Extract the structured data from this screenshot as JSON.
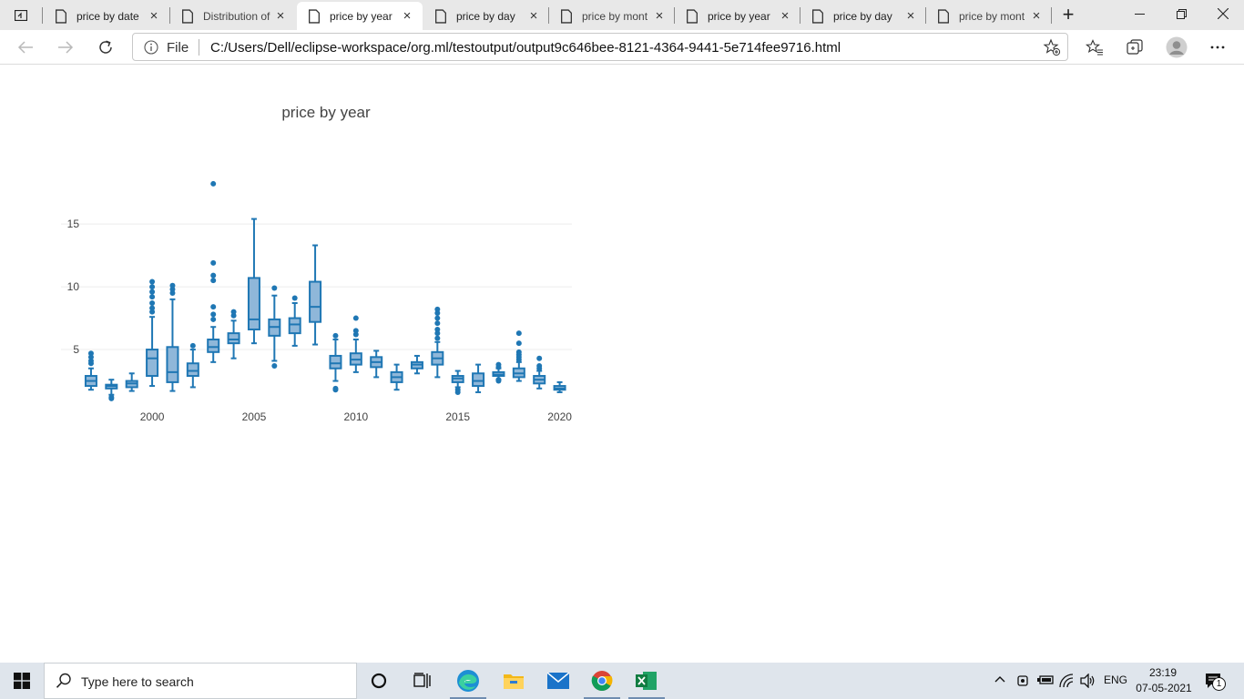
{
  "browser": {
    "tabs": [
      {
        "title": "price by date",
        "active": false
      },
      {
        "title": "Distribution of",
        "active": false
      },
      {
        "title": "price by year",
        "active": true
      },
      {
        "title": "price by day",
        "active": false
      },
      {
        "title": "price by mont",
        "active": false
      },
      {
        "title": "price by year",
        "active": false
      },
      {
        "title": "price by day",
        "active": false
      },
      {
        "title": "price by mont",
        "active": false
      }
    ],
    "close_glyph": "×",
    "new_tab_glyph": "+",
    "address": {
      "scheme_label": "File",
      "url": "C:/Users/Dell/eclipse-workspace/org.ml/testoutput/output9c646bee-8121-4364-9441-5e714fee9716.html"
    }
  },
  "chart_data": {
    "type": "box",
    "title": "price by year",
    "xlabel": "",
    "ylabel": "",
    "x_tick_labels": [
      "2000",
      "2005",
      "2010",
      "2015",
      "2020"
    ],
    "x_ticks": [
      2000,
      2005,
      2010,
      2015,
      2020
    ],
    "y_tick_labels": [
      "5",
      "10",
      "15"
    ],
    "y_ticks": [
      5,
      10,
      15
    ],
    "xlim": [
      1996.6,
      2020.6
    ],
    "ylim": [
      0.8,
      19.5
    ],
    "grid": "horizontal",
    "color": "#1f77b4",
    "fill": "#8fb7d9",
    "boxes": [
      {
        "year": 1997,
        "lf": 1.8,
        "q1": 2.1,
        "med": 2.5,
        "q3": 2.9,
        "uf": 3.5,
        "outliers": [
          3.9,
          4.1,
          4.4,
          4.7
        ]
      },
      {
        "year": 1998,
        "lf": 1.4,
        "q1": 1.9,
        "med": 2.1,
        "q3": 2.2,
        "uf": 2.6,
        "outliers": [
          1.1,
          1.2
        ]
      },
      {
        "year": 1999,
        "lf": 1.7,
        "q1": 2.0,
        "med": 2.3,
        "q3": 2.5,
        "uf": 3.1,
        "outliers": []
      },
      {
        "year": 2000,
        "lf": 2.1,
        "q1": 2.9,
        "med": 4.3,
        "q3": 5.0,
        "uf": 7.6,
        "outliers": [
          8.0,
          8.3,
          8.7,
          9.2,
          9.6,
          10.0,
          10.4
        ]
      },
      {
        "year": 2001,
        "lf": 1.7,
        "q1": 2.4,
        "med": 3.2,
        "q3": 5.2,
        "uf": 9.0,
        "outliers": [
          9.5,
          9.8,
          10.1
        ]
      },
      {
        "year": 2002,
        "lf": 2.0,
        "q1": 2.9,
        "med": 3.3,
        "q3": 3.9,
        "uf": 5.0,
        "outliers": [
          5.3
        ]
      },
      {
        "year": 2003,
        "lf": 4.0,
        "q1": 4.8,
        "med": 5.2,
        "q3": 5.8,
        "uf": 6.8,
        "outliers": [
          7.4,
          7.8,
          8.4,
          10.5,
          10.9,
          11.9,
          18.2
        ]
      },
      {
        "year": 2004,
        "lf": 4.3,
        "q1": 5.5,
        "med": 5.8,
        "q3": 6.3,
        "uf": 7.3,
        "outliers": [
          7.7,
          8.0
        ]
      },
      {
        "year": 2005,
        "lf": 5.5,
        "q1": 6.6,
        "med": 7.4,
        "q3": 10.7,
        "uf": 15.4,
        "outliers": []
      },
      {
        "year": 2006,
        "lf": 4.1,
        "q1": 6.1,
        "med": 6.8,
        "q3": 7.4,
        "uf": 9.3,
        "outliers": [
          3.7,
          9.9
        ]
      },
      {
        "year": 2007,
        "lf": 5.3,
        "q1": 6.3,
        "med": 7.0,
        "q3": 7.5,
        "uf": 8.7,
        "outliers": [
          9.1
        ]
      },
      {
        "year": 2008,
        "lf": 5.4,
        "q1": 7.2,
        "med": 8.4,
        "q3": 10.4,
        "uf": 13.3,
        "outliers": []
      },
      {
        "year": 2009,
        "lf": 2.5,
        "q1": 3.5,
        "med": 3.9,
        "q3": 4.5,
        "uf": 5.8,
        "outliers": [
          1.8,
          1.9,
          6.1
        ]
      },
      {
        "year": 2010,
        "lf": 3.2,
        "q1": 3.8,
        "med": 4.2,
        "q3": 4.7,
        "uf": 5.8,
        "outliers": [
          6.2,
          6.5,
          7.5
        ]
      },
      {
        "year": 2011,
        "lf": 2.8,
        "q1": 3.6,
        "med": 4.0,
        "q3": 4.4,
        "uf": 4.9,
        "outliers": []
      },
      {
        "year": 2012,
        "lf": 1.8,
        "q1": 2.4,
        "med": 2.8,
        "q3": 3.2,
        "uf": 3.8,
        "outliers": []
      },
      {
        "year": 2013,
        "lf": 3.1,
        "q1": 3.5,
        "med": 3.8,
        "q3": 4.0,
        "uf": 4.5,
        "outliers": []
      },
      {
        "year": 2014,
        "lf": 2.8,
        "q1": 3.8,
        "med": 4.3,
        "q3": 4.8,
        "uf": 5.6,
        "outliers": [
          5.9,
          6.3,
          6.6,
          7.1,
          7.5,
          7.9,
          8.2
        ]
      },
      {
        "year": 2015,
        "lf": 2.0,
        "q1": 2.4,
        "med": 2.7,
        "q3": 2.9,
        "uf": 3.3,
        "outliers": [
          1.6,
          1.8
        ]
      },
      {
        "year": 2016,
        "lf": 1.6,
        "q1": 2.1,
        "med": 2.5,
        "q3": 3.1,
        "uf": 3.8,
        "outliers": []
      },
      {
        "year": 2017,
        "lf": 2.6,
        "q1": 2.9,
        "med": 3.0,
        "q3": 3.2,
        "uf": 3.5,
        "outliers": [
          2.5,
          2.6,
          3.6,
          3.8
        ]
      },
      {
        "year": 2018,
        "lf": 2.5,
        "q1": 2.8,
        "med": 3.1,
        "q3": 3.5,
        "uf": 4.0,
        "outliers": [
          4.2,
          4.4,
          4.6,
          4.8,
          5.5,
          6.3
        ]
      },
      {
        "year": 2019,
        "lf": 1.9,
        "q1": 2.3,
        "med": 2.6,
        "q3": 2.9,
        "uf": 3.3,
        "outliers": [
          3.5,
          3.7,
          4.3
        ]
      },
      {
        "year": 2020,
        "lf": 1.6,
        "q1": 1.8,
        "med": 1.9,
        "q3": 2.1,
        "uf": 2.4,
        "outliers": []
      }
    ]
  },
  "taskbar": {
    "search_placeholder": "Type here to search",
    "apps": [
      "cortana-icon",
      "task-view-icon",
      "edge-icon",
      "file-explorer-icon",
      "mail-icon",
      "chrome-icon",
      "excel-icon"
    ],
    "tray": {
      "language": "ENG",
      "notification_count": "1"
    },
    "clock": {
      "time": "23:19",
      "date": "07-05-2021"
    }
  }
}
